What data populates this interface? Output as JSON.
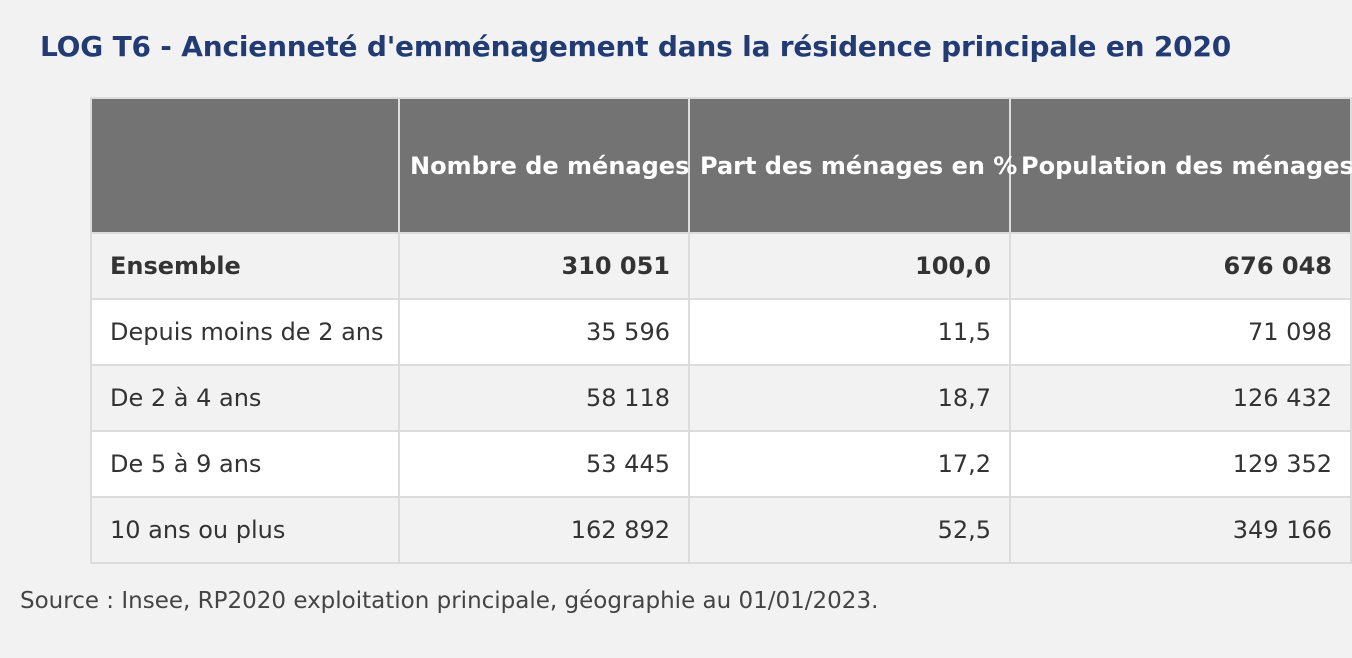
{
  "title": "LOG T6 - Ancienneté d'emménagement dans la résidence principale en 2020",
  "table": {
    "headers": [
      "",
      "Nombre de ménages",
      "Part des ménages en %",
      "Population des ménages"
    ],
    "rows": [
      {
        "label": "Ensemble",
        "values": [
          "310 051",
          "100,0",
          "676 048"
        ],
        "bold": true
      },
      {
        "label": "Depuis moins de 2 ans",
        "values": [
          "35 596",
          "11,5",
          "71 098"
        ]
      },
      {
        "label": "De 2 à 4 ans",
        "values": [
          "58 118",
          "18,7",
          "126 432"
        ]
      },
      {
        "label": "De 5 à 9 ans",
        "values": [
          "53 445",
          "17,2",
          "129 352"
        ]
      },
      {
        "label": "10 ans ou plus",
        "values": [
          "162 892",
          "52,5",
          "349 166"
        ]
      }
    ]
  },
  "source": "Source : Insee, RP2020 exploitation principale, géographie au 01/01/2023.",
  "colors": {
    "title": "#233b73",
    "header_bg": "#737373",
    "row_alt": "#f2f2f2"
  }
}
